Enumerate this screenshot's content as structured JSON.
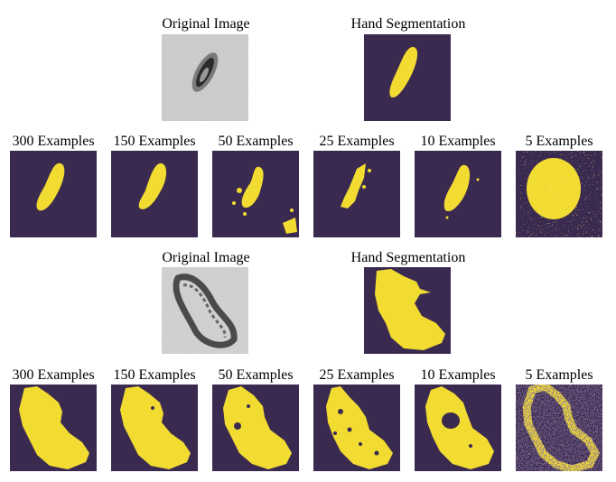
{
  "colors": {
    "background_mask": "#3b2a4f",
    "foreground_mask": "#f2dc32",
    "gray_light": "#d9d9d9",
    "gray_dark": "#2b2b2b"
  },
  "figure": {
    "rows": [
      {
        "top_titles": [
          "Original Image",
          "Hand Segmentation"
        ],
        "bottom_titles": [
          "300 Examples",
          "150 Examples",
          "50 Examples",
          "25 Examples",
          "10 Examples",
          "5 Examples"
        ]
      },
      {
        "top_titles": [
          "Original Image",
          "Hand Segmentation"
        ],
        "bottom_titles": [
          "300 Examples",
          "150 Examples",
          "50 Examples",
          "25 Examples",
          "10 Examples",
          "5 Examples"
        ]
      }
    ]
  }
}
